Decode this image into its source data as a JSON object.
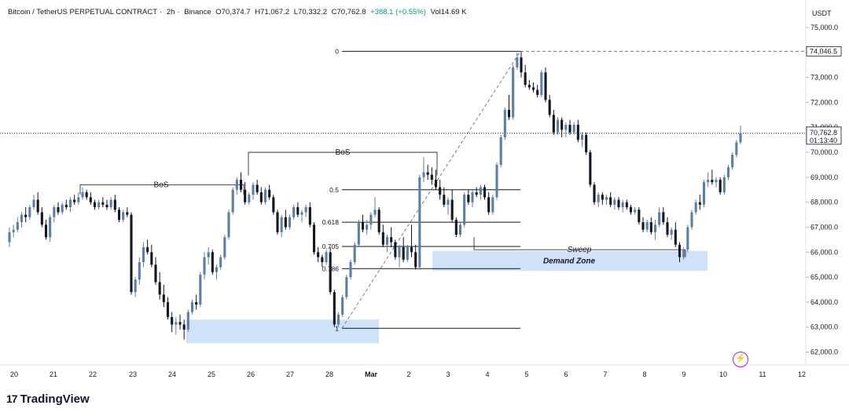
{
  "header": {
    "symbol": "Bitcoin / TetherUS PERPETUAL CONTRACT",
    "interval": "2h",
    "exchange": "Binance",
    "open": "O70,374.7",
    "high": "H71,067.2",
    "low": "L70,332.2",
    "close": "C70,762.8",
    "change": "+388.1 (+0.55%)",
    "volume": "Vol14.69 K"
  },
  "currency": "USDT",
  "brand": "TradingView",
  "colors": {
    "up": "#5b7fa8",
    "down": "#131722",
    "zone": "#cfe2f7",
    "dashed": "#787b86"
  },
  "icons": [
    "lightning-icon",
    "tradingview-logo-icon"
  ],
  "chart_data": {
    "type": "candlestick",
    "ylim": [
      61500,
      75500
    ],
    "y_ticks": [
      62000,
      63000,
      64000,
      65000,
      66000,
      67000,
      68000,
      69000,
      70000,
      71000,
      72000,
      73000,
      74000,
      75000
    ],
    "y_tick_labels": [
      "62,000.0",
      "63,000.0",
      "64,000.0",
      "65,000.0",
      "66,000.0",
      "67,000.0",
      "68,000.0",
      "69,000.0",
      "70,000.0",
      "71,000.0",
      "72,000.0",
      "73,000.0",
      "74,000.0",
      "75,000.0"
    ],
    "x_tick_labels": [
      "20",
      "21",
      "22",
      "23",
      "24",
      "25",
      "26",
      "27",
      "28",
      "Mar",
      "2",
      "3",
      "4",
      "5",
      "6",
      "7",
      "8",
      "9",
      "10",
      "11",
      "12"
    ],
    "price_labels": {
      "top": "74,046.5",
      "current": "70,762.8",
      "countdown": "01:13:40"
    },
    "candles": [
      [
        66400,
        67000,
        66200,
        66800
      ],
      [
        66800,
        67100,
        66600,
        66900
      ],
      [
        66900,
        67400,
        66800,
        67200
      ],
      [
        67200,
        67600,
        67000,
        67500
      ],
      [
        67500,
        67800,
        67200,
        67400
      ],
      [
        67400,
        67900,
        67300,
        67800
      ],
      [
        67800,
        68300,
        67700,
        68100
      ],
      [
        68100,
        68400,
        67500,
        67600
      ],
      [
        67600,
        67800,
        67000,
        67100
      ],
      [
        67100,
        67300,
        66500,
        66600
      ],
      [
        66600,
        67500,
        66400,
        67400
      ],
      [
        67400,
        67900,
        67200,
        67800
      ],
      [
        67800,
        68000,
        67500,
        67600
      ],
      [
        67600,
        68000,
        67500,
        67900
      ],
      [
        67900,
        68100,
        67700,
        67800
      ],
      [
        67800,
        68200,
        67600,
        68100
      ],
      [
        68100,
        68300,
        67900,
        68000
      ],
      [
        68000,
        68400,
        67900,
        68200
      ],
      [
        68200,
        68600,
        68100,
        68400
      ],
      [
        68400,
        68500,
        68100,
        68200
      ],
      [
        68200,
        68400,
        67900,
        68000
      ],
      [
        68000,
        68100,
        67700,
        67800
      ],
      [
        67800,
        68100,
        67700,
        68000
      ],
      [
        68000,
        68200,
        67800,
        67900
      ],
      [
        67900,
        68100,
        67700,
        67800
      ],
      [
        67800,
        68200,
        67700,
        68100
      ],
      [
        68100,
        68300,
        67600,
        67700
      ],
      [
        67700,
        67800,
        67200,
        67300
      ],
      [
        67300,
        67700,
        67200,
        67600
      ],
      [
        67600,
        67800,
        67400,
        67500
      ],
      [
        67500,
        67600,
        64300,
        64400
      ],
      [
        64400,
        65000,
        64200,
        64900
      ],
      [
        64900,
        65800,
        64700,
        65600
      ],
      [
        65600,
        66400,
        65400,
        66200
      ],
      [
        66200,
        66500,
        65900,
        66000
      ],
      [
        66000,
        66300,
        65400,
        65500
      ],
      [
        65500,
        65800,
        64700,
        64800
      ],
      [
        64800,
        65200,
        64100,
        64300
      ],
      [
        64300,
        64700,
        63800,
        64000
      ],
      [
        64000,
        64200,
        63300,
        63400
      ],
      [
        63400,
        63600,
        62800,
        63100
      ],
      [
        63100,
        63400,
        62700,
        63200
      ],
      [
        63200,
        63500,
        62900,
        63100
      ],
      [
        63100,
        63300,
        62500,
        62900
      ],
      [
        62900,
        63700,
        62800,
        63600
      ],
      [
        63600,
        64100,
        63500,
        64000
      ],
      [
        64000,
        64300,
        63700,
        63900
      ],
      [
        63900,
        65200,
        63800,
        65100
      ],
      [
        65100,
        66000,
        64900,
        65800
      ],
      [
        65800,
        66200,
        65500,
        66000
      ],
      [
        66000,
        66100,
        65100,
        65200
      ],
      [
        65200,
        65500,
        64900,
        65400
      ],
      [
        65400,
        65900,
        65300,
        65800
      ],
      [
        65800,
        66700,
        65700,
        66600
      ],
      [
        66600,
        67700,
        66500,
        67600
      ],
      [
        67600,
        68600,
        67500,
        68500
      ],
      [
        68500,
        69000,
        68300,
        68900
      ],
      [
        68900,
        69200,
        68400,
        68500
      ],
      [
        68500,
        68800,
        67900,
        68000
      ],
      [
        68000,
        68400,
        67900,
        68300
      ],
      [
        68300,
        68800,
        68100,
        68700
      ],
      [
        68700,
        68900,
        68300,
        68400
      ],
      [
        68400,
        68600,
        67900,
        68000
      ],
      [
        68000,
        68600,
        67900,
        68500
      ],
      [
        68500,
        68700,
        68100,
        68200
      ],
      [
        68200,
        68300,
        67500,
        67600
      ],
      [
        67600,
        67700,
        66700,
        66800
      ],
      [
        66800,
        67500,
        66600,
        67400
      ],
      [
        67400,
        67700,
        66900,
        67000
      ],
      [
        67000,
        67500,
        66900,
        67400
      ],
      [
        67400,
        67900,
        67300,
        67800
      ],
      [
        67800,
        68000,
        67400,
        67500
      ],
      [
        67500,
        67700,
        67200,
        67600
      ],
      [
        67600,
        67900,
        67400,
        67800
      ],
      [
        67800,
        68000,
        67000,
        67100
      ],
      [
        67100,
        67200,
        65900,
        66000
      ],
      [
        66000,
        66200,
        65600,
        65800
      ],
      [
        65800,
        65900,
        65400,
        65600
      ],
      [
        65600,
        66100,
        65500,
        66000
      ],
      [
        66000,
        66200,
        64300,
        64400
      ],
      [
        64400,
        64500,
        63000,
        63100
      ],
      [
        63100,
        63600,
        63000,
        63500
      ],
      [
        63500,
        64300,
        63400,
        64200
      ],
      [
        64200,
        65100,
        64100,
        65000
      ],
      [
        65000,
        65700,
        64900,
        65600
      ],
      [
        65600,
        66400,
        65500,
        66300
      ],
      [
        66300,
        67300,
        66200,
        67200
      ],
      [
        67200,
        67500,
        66800,
        66900
      ],
      [
        66900,
        67300,
        66700,
        67100
      ],
      [
        67100,
        67600,
        66900,
        67500
      ],
      [
        67500,
        68200,
        67400,
        67700
      ],
      [
        67700,
        67800,
        66700,
        66800
      ],
      [
        66800,
        67100,
        66200,
        66300
      ],
      [
        66300,
        66700,
        66000,
        66600
      ],
      [
        66600,
        67000,
        66200,
        66400
      ],
      [
        66400,
        66500,
        65700,
        65800
      ],
      [
        65800,
        66300,
        65400,
        66200
      ],
      [
        66200,
        66600,
        65600,
        65700
      ],
      [
        65700,
        66300,
        65600,
        66200
      ],
      [
        66200,
        67100,
        65800,
        66000
      ],
      [
        66000,
        66300,
        65300,
        65400
      ],
      [
        65400,
        69100,
        65300,
        69000
      ],
      [
        69000,
        69800,
        68800,
        69200
      ],
      [
        69200,
        69500,
        68900,
        69100
      ],
      [
        69100,
        69400,
        68700,
        68900
      ],
      [
        68900,
        69300,
        68500,
        68600
      ],
      [
        68600,
        68900,
        68100,
        68300
      ],
      [
        68300,
        68600,
        67800,
        67900
      ],
      [
        67900,
        68200,
        67500,
        68100
      ],
      [
        68100,
        68500,
        67200,
        67300
      ],
      [
        67300,
        67400,
        66600,
        66700
      ],
      [
        66700,
        67200,
        66600,
        67100
      ],
      [
        67100,
        68400,
        67000,
        68300
      ],
      [
        68300,
        68500,
        67900,
        68000
      ],
      [
        68000,
        68500,
        67800,
        68400
      ],
      [
        68400,
        68600,
        68200,
        68300
      ],
      [
        68300,
        68700,
        68100,
        68600
      ],
      [
        68600,
        68700,
        68100,
        68200
      ],
      [
        68200,
        68400,
        67500,
        67600
      ],
      [
        67600,
        68300,
        67500,
        68200
      ],
      [
        68200,
        69600,
        68100,
        69500
      ],
      [
        69500,
        70700,
        69400,
        70600
      ],
      [
        70600,
        71800,
        70500,
        71700
      ],
      [
        71700,
        72300,
        71300,
        71400
      ],
      [
        71400,
        73500,
        71300,
        73400
      ],
      [
        73400,
        74000,
        73300,
        73800
      ],
      [
        73800,
        74050,
        73000,
        73200
      ],
      [
        73200,
        73500,
        72600,
        72700
      ],
      [
        72700,
        72900,
        72500,
        72600
      ],
      [
        72600,
        72800,
        72400,
        72500
      ],
      [
        72500,
        72700,
        72200,
        72300
      ],
      [
        72300,
        73300,
        72200,
        73200
      ],
      [
        73200,
        73400,
        72000,
        72100
      ],
      [
        72100,
        72300,
        71400,
        71500
      ],
      [
        71500,
        71700,
        70700,
        70800
      ],
      [
        70800,
        71400,
        70700,
        71300
      ],
      [
        71300,
        71400,
        70600,
        70900
      ],
      [
        70900,
        71200,
        70600,
        71100
      ],
      [
        71100,
        71300,
        70700,
        70800
      ],
      [
        70800,
        71200,
        70700,
        71100
      ],
      [
        71100,
        71300,
        70400,
        70500
      ],
      [
        70500,
        70800,
        70200,
        70700
      ],
      [
        70700,
        70800,
        69900,
        70000
      ],
      [
        70000,
        70100,
        68600,
        68700
      ],
      [
        68700,
        68800,
        67900,
        68000
      ],
      [
        68000,
        68400,
        67800,
        68300
      ],
      [
        68300,
        68400,
        67900,
        68100
      ],
      [
        68100,
        68300,
        67900,
        68200
      ],
      [
        68200,
        68400,
        67800,
        67900
      ],
      [
        67900,
        68200,
        67700,
        68100
      ],
      [
        68100,
        68200,
        67700,
        67800
      ],
      [
        67800,
        68100,
        67600,
        68000
      ],
      [
        68000,
        68100,
        67700,
        67800
      ],
      [
        67800,
        67900,
        67500,
        67600
      ],
      [
        67600,
        67800,
        67500,
        67700
      ],
      [
        67700,
        67800,
        67100,
        67200
      ],
      [
        67200,
        67400,
        66800,
        66900
      ],
      [
        66900,
        67300,
        66800,
        67200
      ],
      [
        67200,
        67400,
        66700,
        66800
      ],
      [
        66800,
        67300,
        66500,
        67100
      ],
      [
        67100,
        67800,
        67000,
        67600
      ],
      [
        67600,
        67800,
        67100,
        67200
      ],
      [
        67200,
        67400,
        66600,
        66700
      ],
      [
        66700,
        67000,
        66500,
        66900
      ],
      [
        66900,
        67200,
        66200,
        66300
      ],
      [
        66300,
        66400,
        65600,
        65800
      ],
      [
        65800,
        66200,
        65700,
        66100
      ],
      [
        66100,
        67100,
        66000,
        67000
      ],
      [
        67000,
        67700,
        66900,
        67600
      ],
      [
        67600,
        68100,
        67500,
        68000
      ],
      [
        68000,
        68300,
        67700,
        67900
      ],
      [
        67900,
        68900,
        67800,
        68800
      ],
      [
        68800,
        69200,
        68600,
        68900
      ],
      [
        68900,
        69300,
        68700,
        68800
      ],
      [
        68800,
        69000,
        68600,
        68900
      ],
      [
        68900,
        69000,
        68300,
        68400
      ],
      [
        68400,
        69100,
        68300,
        69000
      ],
      [
        69000,
        69500,
        68900,
        69400
      ],
      [
        69400,
        70000,
        69300,
        69900
      ],
      [
        69900,
        70500,
        69800,
        70400
      ],
      [
        70400,
        71070,
        70330,
        70762
      ]
    ],
    "levels": [
      {
        "label": "0",
        "price": 74046
      },
      {
        "label": "0.5",
        "price": 68500
      },
      {
        "label": "0.618",
        "price": 67200
      },
      {
        "label": "0.705",
        "price": 66230
      },
      {
        "label": "0.786",
        "price": 65340
      },
      {
        "label": "1",
        "price": 62950
      }
    ],
    "annotations": [
      "BoS",
      "BoS",
      "Sweep",
      "Demand Zone"
    ]
  }
}
